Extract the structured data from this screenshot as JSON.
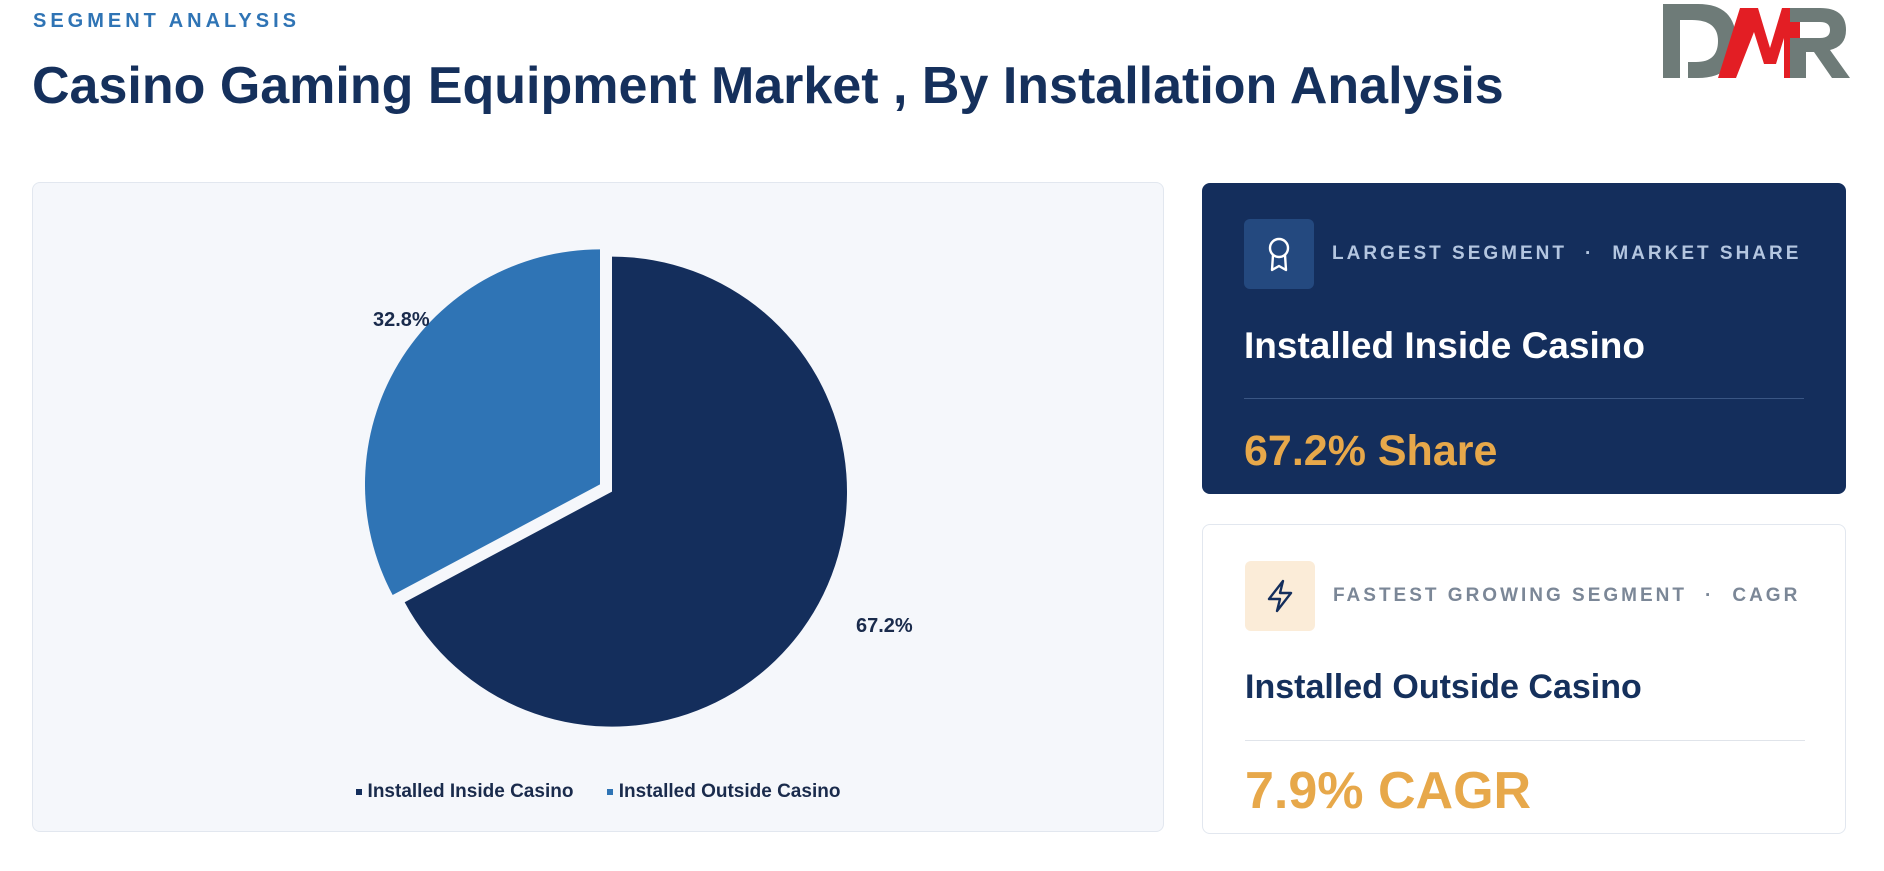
{
  "header": {
    "eyebrow": "SEGMENT ANALYSIS",
    "title": "Casino Gaming Equipment Market , By Installation Analysis"
  },
  "logo": {
    "text": "DMR",
    "colors": {
      "d": "#6e7b78",
      "m": "#e31e24",
      "r": "#6e7b78"
    }
  },
  "chart_data": {
    "type": "pie",
    "categories": [
      "Installed Inside Casino",
      "Installed Outside Casino"
    ],
    "values": [
      67.2,
      32.8
    ],
    "labels": [
      "67.2%",
      "32.8%"
    ],
    "colors": [
      "#142e5c",
      "#2f74b5"
    ],
    "legend": "bottom"
  },
  "cards": {
    "largest": {
      "icon": "award-icon",
      "label": "LARGEST SEGMENT",
      "separator": "·",
      "metric": "MARKET SHARE",
      "name": "Installed Inside Casino",
      "value": "67.2% Share"
    },
    "fastest": {
      "icon": "lightning-icon",
      "label": "FASTEST GROWING SEGMENT",
      "separator": "·",
      "metric": "CAGR",
      "name": "Installed Outside Casino",
      "value": "7.9% CAGR"
    }
  }
}
